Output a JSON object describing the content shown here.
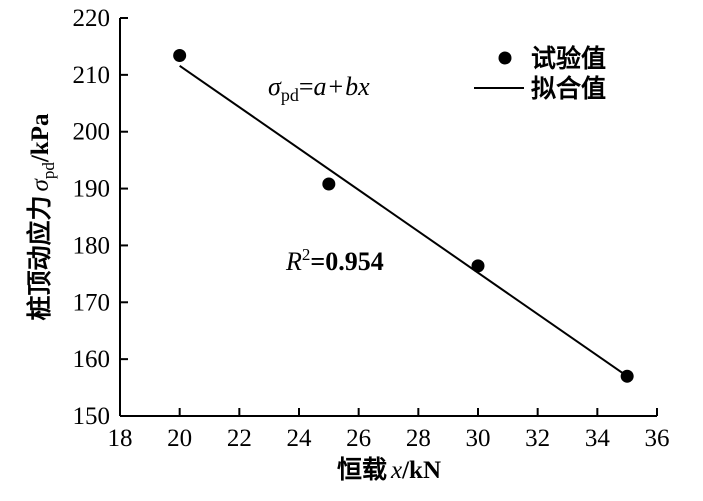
{
  "chart_data": {
    "type": "scatter",
    "x": [
      20,
      25,
      30,
      35
    ],
    "y": [
      213.4,
      190.8,
      176.4,
      157.0
    ],
    "xlim": [
      18,
      36
    ],
    "ylim": [
      150,
      220
    ],
    "xticks": [
      18,
      20,
      22,
      24,
      26,
      28,
      30,
      32,
      34,
      36
    ],
    "yticks": [
      150,
      160,
      170,
      180,
      190,
      200,
      210,
      220
    ],
    "xlabel": {
      "cn": "恒载",
      "var": "x",
      "unit": "/kN"
    },
    "ylabel": {
      "cn": "桩顶动应力",
      "sym": "σ",
      "sub": "pd",
      "unit": "/kPa"
    },
    "fit_line": {
      "x": [
        20,
        35
      ],
      "y": [
        211.6,
        157.0
      ]
    },
    "legend": {
      "position": "top-right",
      "items": [
        {
          "label": "试验值",
          "marker": "dot"
        },
        {
          "label": "拟合值",
          "marker": "line"
        }
      ]
    },
    "annotations": {
      "equation": {
        "sym": "σ",
        "sub": "pd",
        "rhs_a": "a",
        "plus": "+",
        "rhs_b": "b",
        "rhs_x": "x"
      },
      "r2": {
        "label": "R",
        "sup": "2",
        "eq": "=",
        "value": "0.954"
      }
    },
    "grid": false,
    "colors": {
      "ink": "#000000"
    }
  }
}
